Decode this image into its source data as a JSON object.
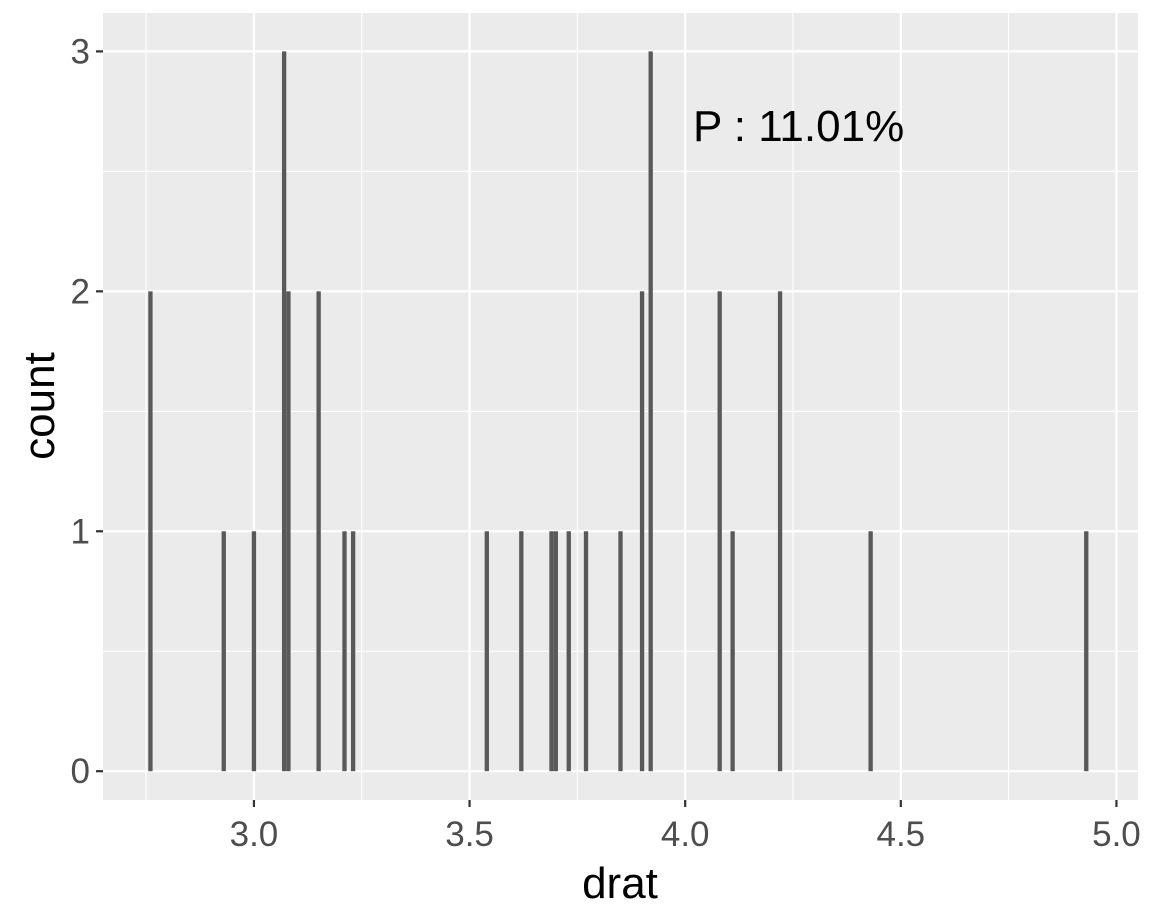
{
  "chart_data": {
    "type": "bar",
    "title": "",
    "xlabel": "drat",
    "ylabel": "count",
    "annotation": "P : 11.01%",
    "xlim": [
      2.65,
      5.05
    ],
    "ylim": [
      -0.12,
      3.16
    ],
    "x_ticks": [
      {
        "value": 3.0,
        "label": "3.0"
      },
      {
        "value": 3.5,
        "label": "3.5"
      },
      {
        "value": 4.0,
        "label": "4.0"
      },
      {
        "value": 4.5,
        "label": "4.5"
      },
      {
        "value": 5.0,
        "label": "5.0"
      }
    ],
    "y_ticks": [
      {
        "value": 0,
        "label": "0"
      },
      {
        "value": 1,
        "label": "1"
      },
      {
        "value": 2,
        "label": "2"
      },
      {
        "value": 3,
        "label": "3"
      }
    ],
    "bar_width": 0.01,
    "grid": true,
    "bar_color": "#595959",
    "panel_color": "#EBEBEB",
    "points": [
      {
        "x": 2.76,
        "y": 2
      },
      {
        "x": 2.93,
        "y": 1
      },
      {
        "x": 3.0,
        "y": 1
      },
      {
        "x": 3.07,
        "y": 3
      },
      {
        "x": 3.08,
        "y": 2
      },
      {
        "x": 3.15,
        "y": 2
      },
      {
        "x": 3.21,
        "y": 1
      },
      {
        "x": 3.23,
        "y": 1
      },
      {
        "x": 3.54,
        "y": 1
      },
      {
        "x": 3.62,
        "y": 1
      },
      {
        "x": 3.69,
        "y": 1
      },
      {
        "x": 3.7,
        "y": 1
      },
      {
        "x": 3.73,
        "y": 1
      },
      {
        "x": 3.77,
        "y": 1
      },
      {
        "x": 3.85,
        "y": 1
      },
      {
        "x": 3.9,
        "y": 2
      },
      {
        "x": 3.92,
        "y": 3
      },
      {
        "x": 4.08,
        "y": 2
      },
      {
        "x": 4.11,
        "y": 1
      },
      {
        "x": 4.22,
        "y": 2
      },
      {
        "x": 4.43,
        "y": 1
      },
      {
        "x": 4.93,
        "y": 1
      }
    ]
  }
}
